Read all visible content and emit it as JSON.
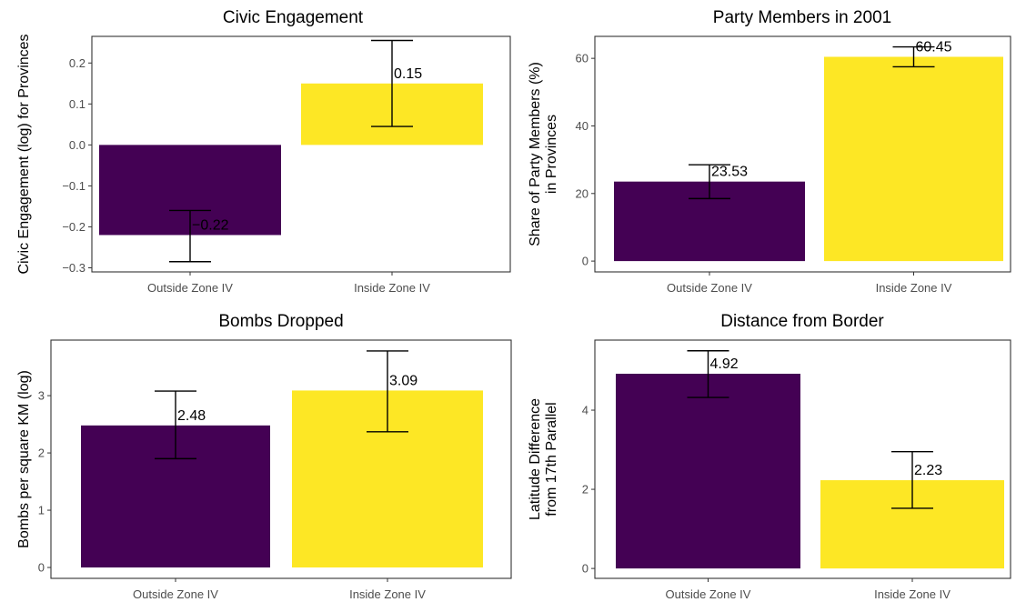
{
  "colors": {
    "outside": "#440154",
    "inside": "#fde725",
    "axis": "#333333",
    "tick_text": "#4d4d4d"
  },
  "chart_data": [
    {
      "type": "bar",
      "title": "Civic Engagement",
      "ylabel": [
        "Civic Engagement (log) for Provinces"
      ],
      "categories": [
        "Outside Zone IV",
        "Inside Zone IV"
      ],
      "values": [
        -0.22,
        0.15
      ],
      "value_labels": [
        "−0.22",
        "0.15"
      ],
      "error_low": [
        -0.285,
        0.045
      ],
      "error_high": [
        -0.16,
        0.255
      ],
      "ylim": [
        -0.31,
        0.265
      ],
      "yticks": [
        -0.3,
        -0.2,
        -0.1,
        0.0,
        0.1,
        0.2
      ],
      "ytick_labels": [
        "−0.3",
        "−0.2",
        "−0.1",
        "0.0",
        "0.1",
        "0.2"
      ],
      "grid": false
    },
    {
      "type": "bar",
      "title": "Party Members in 2001",
      "ylabel": [
        "Share of Party Members (%)",
        "in Provinces"
      ],
      "categories": [
        "Outside Zone IV",
        "Inside Zone IV"
      ],
      "values": [
        23.53,
        60.45
      ],
      "value_labels": [
        "23.53",
        "60.45"
      ],
      "error_low": [
        18.5,
        57.5
      ],
      "error_high": [
        28.5,
        63.4
      ],
      "ylim": [
        -3.2,
        66.5
      ],
      "yticks": [
        0,
        20,
        40,
        60
      ],
      "ytick_labels": [
        "0",
        "20",
        "40",
        "60"
      ],
      "grid": false
    },
    {
      "type": "bar",
      "title": "Bombs Dropped",
      "ylabel": [
        "Bombs per square KM (log)"
      ],
      "categories": [
        "Outside Zone IV",
        "Inside Zone IV"
      ],
      "values": [
        2.48,
        3.09
      ],
      "value_labels": [
        "2.48",
        "3.09"
      ],
      "error_low": [
        1.9,
        2.37
      ],
      "error_high": [
        3.08,
        3.78
      ],
      "ylim": [
        -0.19,
        3.97
      ],
      "yticks": [
        0,
        1,
        2,
        3
      ],
      "ytick_labels": [
        "0",
        "1",
        "2",
        "3"
      ],
      "grid": false
    },
    {
      "type": "bar",
      "title": "Distance from Border",
      "ylabel": [
        "Latitude Difference",
        "from 17th Parallel"
      ],
      "categories": [
        "Outside Zone IV",
        "Inside Zone IV"
      ],
      "values": [
        4.92,
        2.23
      ],
      "value_labels": [
        "4.92",
        "2.23"
      ],
      "error_low": [
        4.32,
        1.52
      ],
      "error_high": [
        5.5,
        2.95
      ],
      "ylim": [
        -0.25,
        5.77
      ],
      "yticks": [
        0,
        2,
        4
      ],
      "ytick_labels": [
        "0",
        "2",
        "4"
      ],
      "grid": false
    }
  ]
}
